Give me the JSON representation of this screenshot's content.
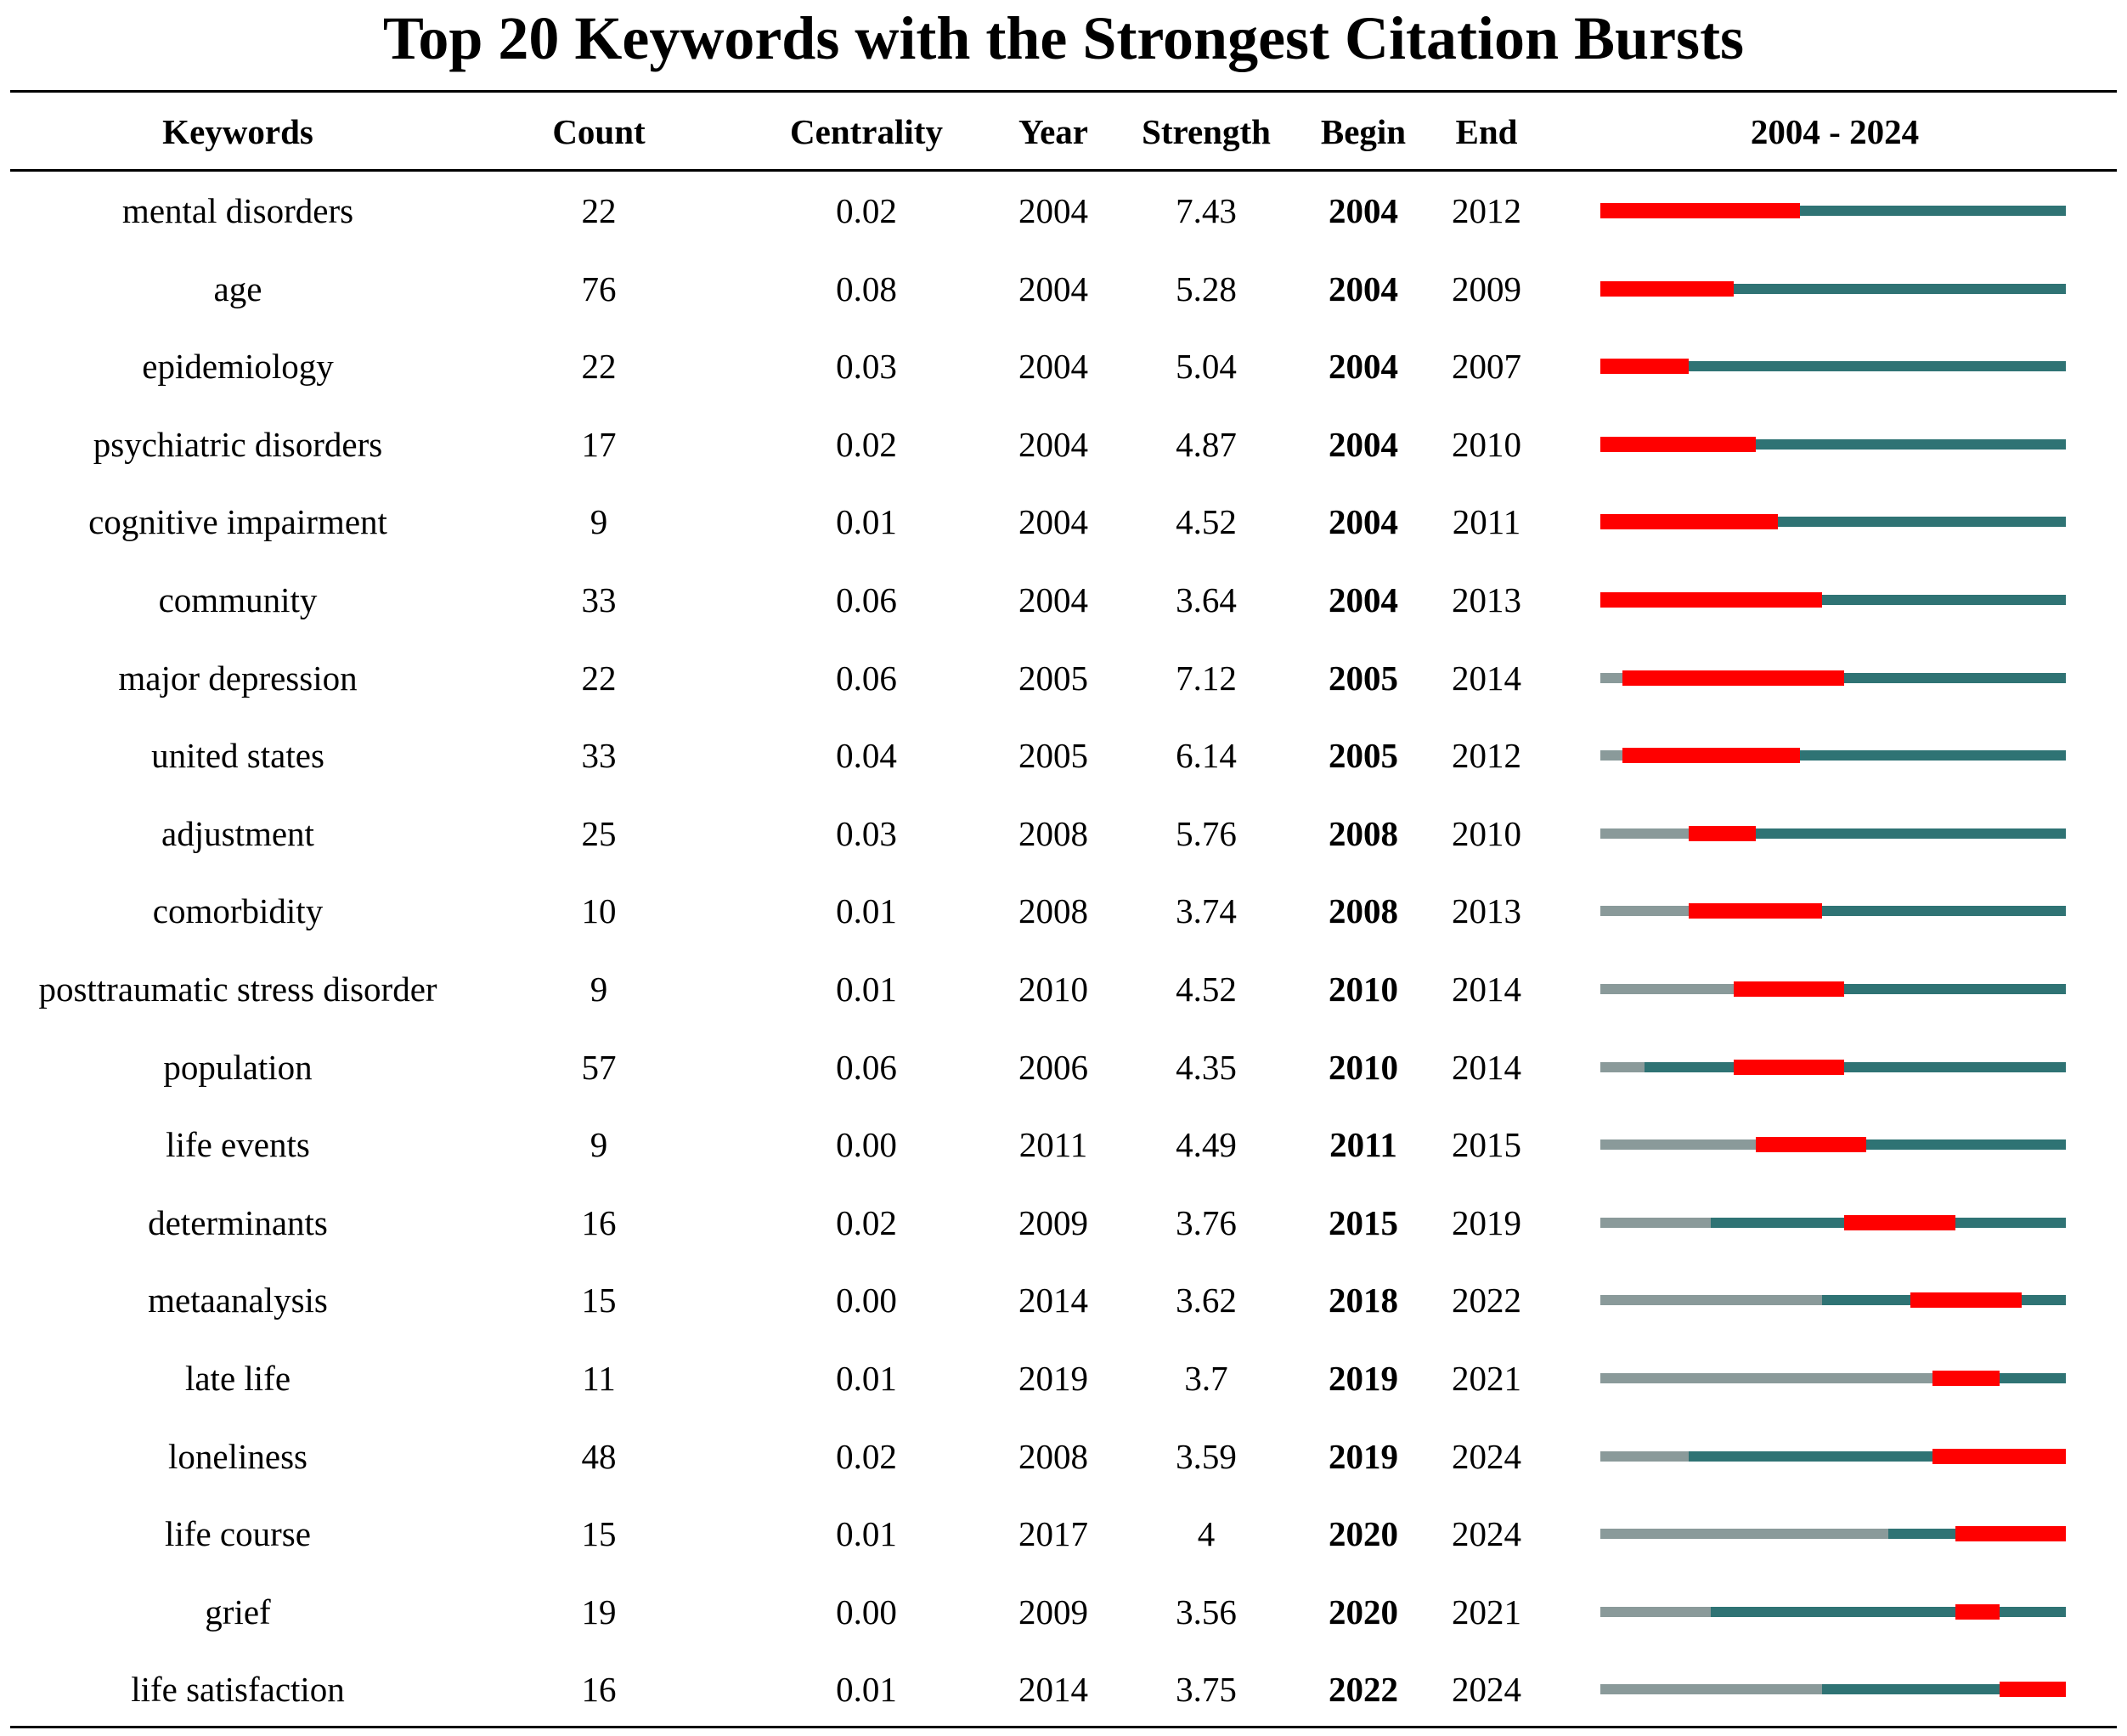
{
  "chart_data": {
    "type": "table",
    "title": "Top 20 Keywords with the Strongest Citation Bursts",
    "columns": [
      "Keywords",
      "Count",
      "Centrality",
      "Year",
      "Strength",
      "Begin",
      "End",
      "2004 - 2024"
    ],
    "timeline_range": [
      2004,
      2024
    ],
    "colors": {
      "burst": "#ff0000",
      "active": "#2f7374",
      "before": "#8a9a9a"
    },
    "rows": [
      {
        "keyword": "mental disorders",
        "count": "22",
        "centrality": "0.02",
        "year": "2004",
        "strength": "7.43",
        "begin": "2004",
        "end": "2012"
      },
      {
        "keyword": "age",
        "count": "76",
        "centrality": "0.08",
        "year": "2004",
        "strength": "5.28",
        "begin": "2004",
        "end": "2009"
      },
      {
        "keyword": "epidemiology",
        "count": "22",
        "centrality": "0.03",
        "year": "2004",
        "strength": "5.04",
        "begin": "2004",
        "end": "2007"
      },
      {
        "keyword": "psychiatric disorders",
        "count": "17",
        "centrality": "0.02",
        "year": "2004",
        "strength": "4.87",
        "begin": "2004",
        "end": "2010"
      },
      {
        "keyword": "cognitive impairment",
        "count": "9",
        "centrality": "0.01",
        "year": "2004",
        "strength": "4.52",
        "begin": "2004",
        "end": "2011"
      },
      {
        "keyword": "community",
        "count": "33",
        "centrality": "0.06",
        "year": "2004",
        "strength": "3.64",
        "begin": "2004",
        "end": "2013"
      },
      {
        "keyword": "major depression",
        "count": "22",
        "centrality": "0.06",
        "year": "2005",
        "strength": "7.12",
        "begin": "2005",
        "end": "2014"
      },
      {
        "keyword": "united states",
        "count": "33",
        "centrality": "0.04",
        "year": "2005",
        "strength": "6.14",
        "begin": "2005",
        "end": "2012"
      },
      {
        "keyword": "adjustment",
        "count": "25",
        "centrality": "0.03",
        "year": "2008",
        "strength": "5.76",
        "begin": "2008",
        "end": "2010"
      },
      {
        "keyword": "comorbidity",
        "count": "10",
        "centrality": "0.01",
        "year": "2008",
        "strength": "3.74",
        "begin": "2008",
        "end": "2013"
      },
      {
        "keyword": "posttraumatic stress disorder",
        "count": "9",
        "centrality": "0.01",
        "year": "2010",
        "strength": "4.52",
        "begin": "2010",
        "end": "2014"
      },
      {
        "keyword": "population",
        "count": "57",
        "centrality": "0.06",
        "year": "2006",
        "strength": "4.35",
        "begin": "2010",
        "end": "2014"
      },
      {
        "keyword": "life events",
        "count": "9",
        "centrality": "0.00",
        "year": "2011",
        "strength": "4.49",
        "begin": "2011",
        "end": "2015"
      },
      {
        "keyword": "determinants",
        "count": "16",
        "centrality": "0.02",
        "year": "2009",
        "strength": "3.76",
        "begin": "2015",
        "end": "2019"
      },
      {
        "keyword": "metaanalysis",
        "count": "15",
        "centrality": "0.00",
        "year": "2014",
        "strength": "3.62",
        "begin": "2018",
        "end": "2022"
      },
      {
        "keyword": "late life",
        "count": "11",
        "centrality": "0.01",
        "year": "2019",
        "strength": "3.7",
        "begin": "2019",
        "end": "2021"
      },
      {
        "keyword": "loneliness",
        "count": "48",
        "centrality": "0.02",
        "year": "2008",
        "strength": "3.59",
        "begin": "2019",
        "end": "2024"
      },
      {
        "keyword": "life course",
        "count": "15",
        "centrality": "0.01",
        "year": "2017",
        "strength": "4",
        "begin": "2020",
        "end": "2024"
      },
      {
        "keyword": "grief",
        "count": "19",
        "centrality": "0.00",
        "year": "2009",
        "strength": "3.56",
        "begin": "2020",
        "end": "2021"
      },
      {
        "keyword": "life satisfaction",
        "count": "16",
        "centrality": "0.01",
        "year": "2014",
        "strength": "3.75",
        "begin": "2022",
        "end": "2024"
      }
    ]
  }
}
